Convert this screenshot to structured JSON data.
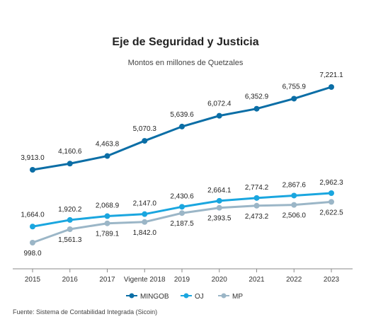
{
  "chart_data": {
    "type": "line",
    "title": "Eje de Seguridad y Justicia",
    "subtitle": "Montos en millones de Quetzales",
    "categories": [
      "2015",
      "2016",
      "2017",
      "Vigente 2018",
      "2019",
      "2020",
      "2021",
      "2022",
      "2023"
    ],
    "series": [
      {
        "name": "MINGOB",
        "color": "#0b6ea6",
        "values": [
          3913.0,
          4160.6,
          4463.8,
          5070.3,
          5639.6,
          6072.4,
          6352.9,
          6755.9,
          7221.1
        ],
        "labels": [
          "3,913.0",
          "4,160.6",
          "4,463.8",
          "5,070.3",
          "5,639.6",
          "6,072.4",
          "6,352.9",
          "6,755.9",
          "7,221.1"
        ]
      },
      {
        "name": "OJ",
        "color": "#1aa6df",
        "values": [
          1664.0,
          1920.2,
          2068.9,
          2147.0,
          2430.6,
          2664.1,
          2774.2,
          2867.6,
          2962.3
        ],
        "labels": [
          "1,664.0",
          "1,920.2",
          "2,068.9",
          "2,147.0",
          "2,430.6",
          "2,664.1",
          "2,774.2",
          "2,867.6",
          "2,962.3"
        ]
      },
      {
        "name": "MP",
        "color": "#9bb6c7",
        "values": [
          998.0,
          1561.3,
          1789.1,
          1842.0,
          2187.5,
          2393.5,
          2473.2,
          2506.0,
          2622.5
        ],
        "labels": [
          "998.0",
          "1,561.3",
          "1,789.1",
          "1,842.0",
          "2,187.5",
          "2,393.5",
          "2,473.2",
          "2,506.0",
          "2,622.5"
        ]
      }
    ],
    "legend_position": "bottom",
    "grid": false,
    "source": "Fuente: Sistema de Contabilidad Integrada (Sicoin)"
  }
}
